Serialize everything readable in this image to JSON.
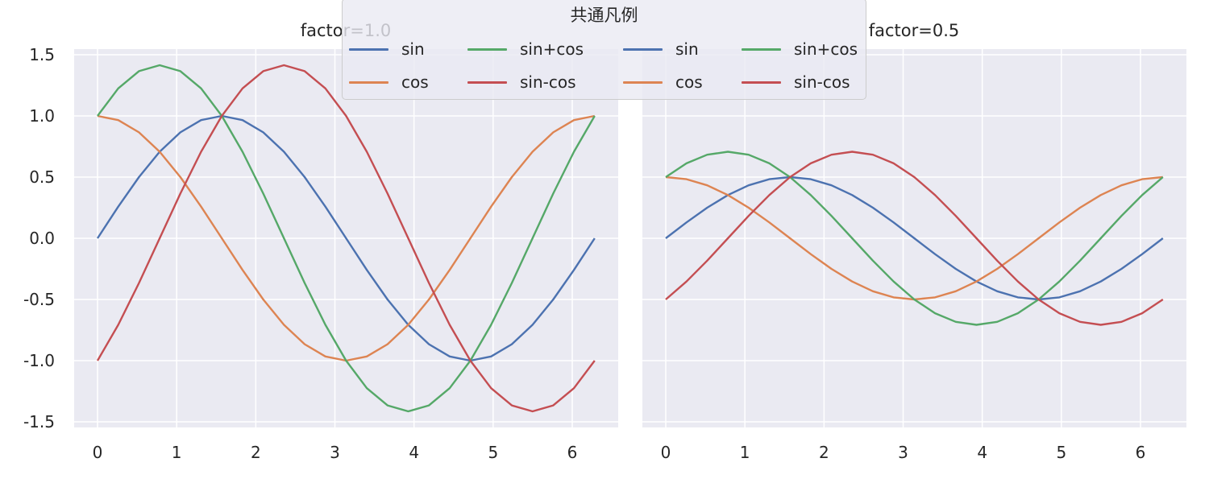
{
  "legend": {
    "title": "共通凡例",
    "entries": [
      {
        "label": "sin",
        "color": "#4c72b0"
      },
      {
        "label": "cos",
        "color": "#dd8452"
      },
      {
        "label": "sin+cos",
        "color": "#55a868"
      },
      {
        "label": "sin-cos",
        "color": "#c44e52"
      },
      {
        "label": "sin",
        "color": "#4c72b0"
      },
      {
        "label": "cos",
        "color": "#dd8452"
      },
      {
        "label": "sin+cos",
        "color": "#55a868"
      },
      {
        "label": "sin-cos",
        "color": "#c44e52"
      }
    ]
  },
  "style": {
    "axes_bg": "#eaeaf2",
    "grid_color": "#ffffff",
    "text_color": "#262626"
  },
  "chart_data": [
    {
      "type": "line",
      "title": "factor=1.0",
      "xlabel": "",
      "ylabel": "",
      "xlim": [
        -0.31,
        6.6
      ],
      "ylim": [
        -1.55,
        1.55
      ],
      "xticks": [
        "0",
        "1",
        "2",
        "3",
        "4",
        "5",
        "6"
      ],
      "yticks": [
        "-1.5",
        "-1.0",
        "-0.5",
        "0.0",
        "0.5",
        "1.0",
        "1.5"
      ],
      "grid": true,
      "x": [
        0,
        0.2618,
        0.5236,
        0.7854,
        1.0472,
        1.309,
        1.5708,
        1.8326,
        2.0944,
        2.3562,
        2.618,
        2.8798,
        3.1416,
        3.4034,
        3.6652,
        3.927,
        4.1888,
        4.4506,
        4.7124,
        4.9742,
        5.236,
        5.4978,
        5.7596,
        6.0214,
        6.2832
      ],
      "series": [
        {
          "name": "sin",
          "color": "#4c72b0",
          "values": [
            0,
            0.2588,
            0.5,
            0.7071,
            0.866,
            0.9659,
            1,
            0.9659,
            0.866,
            0.7071,
            0.5,
            0.2588,
            0,
            -0.2588,
            -0.5,
            -0.7071,
            -0.866,
            -0.9659,
            -1,
            -0.9659,
            -0.866,
            -0.7071,
            -0.5,
            -0.2588,
            0
          ]
        },
        {
          "name": "cos",
          "color": "#dd8452",
          "values": [
            1,
            0.9659,
            0.866,
            0.7071,
            0.5,
            0.2588,
            0,
            -0.2588,
            -0.5,
            -0.7071,
            -0.866,
            -0.9659,
            -1,
            -0.9659,
            -0.866,
            -0.7071,
            -0.5,
            -0.2588,
            0,
            0.2588,
            0.5,
            0.7071,
            0.866,
            0.9659,
            1
          ]
        },
        {
          "name": "sin+cos",
          "color": "#55a868",
          "values": [
            1,
            1.2247,
            1.366,
            1.4142,
            1.366,
            1.2247,
            1,
            0.7071,
            0.366,
            0,
            -0.366,
            -0.7071,
            -1,
            -1.2247,
            -1.366,
            -1.4142,
            -1.366,
            -1.2247,
            -1,
            -0.7071,
            -0.366,
            0,
            0.366,
            0.7071,
            1
          ]
        },
        {
          "name": "sin-cos",
          "color": "#c44e52",
          "values": [
            -1,
            -0.7071,
            -0.366,
            0,
            0.366,
            0.7071,
            1,
            1.2247,
            1.366,
            1.4142,
            1.366,
            1.2247,
            1,
            0.7071,
            0.366,
            0,
            -0.366,
            -0.7071,
            -1,
            -1.2247,
            -1.366,
            -1.4142,
            -1.366,
            -1.2247,
            -1
          ]
        }
      ]
    },
    {
      "type": "line",
      "title": "factor=0.5",
      "xlabel": "",
      "ylabel": "",
      "xlim": [
        -0.31,
        6.6
      ],
      "ylim": [
        -1.55,
        1.55
      ],
      "xticks": [
        "0",
        "1",
        "2",
        "3",
        "4",
        "5",
        "6"
      ],
      "yticks": [],
      "grid": true,
      "sharey": true,
      "x": [
        0,
        0.2618,
        0.5236,
        0.7854,
        1.0472,
        1.309,
        1.5708,
        1.8326,
        2.0944,
        2.3562,
        2.618,
        2.8798,
        3.1416,
        3.4034,
        3.6652,
        3.927,
        4.1888,
        4.4506,
        4.7124,
        4.9742,
        5.236,
        5.4978,
        5.7596,
        6.0214,
        6.2832
      ],
      "series": [
        {
          "name": "sin",
          "color": "#4c72b0",
          "values": [
            0,
            0.1294,
            0.25,
            0.3536,
            0.433,
            0.483,
            0.5,
            0.483,
            0.433,
            0.3536,
            0.25,
            0.1294,
            0,
            -0.1294,
            -0.25,
            -0.3536,
            -0.433,
            -0.483,
            -0.5,
            -0.483,
            -0.433,
            -0.3536,
            -0.25,
            -0.1294,
            0
          ]
        },
        {
          "name": "cos",
          "color": "#dd8452",
          "values": [
            0.5,
            0.483,
            0.433,
            0.3536,
            0.25,
            0.1294,
            0,
            -0.1294,
            -0.25,
            -0.3536,
            -0.433,
            -0.483,
            -0.5,
            -0.483,
            -0.433,
            -0.3536,
            -0.25,
            -0.1294,
            0,
            0.1294,
            0.25,
            0.3536,
            0.433,
            0.483,
            0.5
          ]
        },
        {
          "name": "sin+cos",
          "color": "#55a868",
          "values": [
            0.5,
            0.6124,
            0.683,
            0.7071,
            0.683,
            0.6124,
            0.5,
            0.3536,
            0.183,
            0,
            -0.183,
            -0.3536,
            -0.5,
            -0.6124,
            -0.683,
            -0.7071,
            -0.683,
            -0.6124,
            -0.5,
            -0.3536,
            -0.183,
            0,
            0.183,
            0.3536,
            0.5
          ]
        },
        {
          "name": "sin-cos",
          "color": "#c44e52",
          "values": [
            -0.5,
            -0.3536,
            -0.183,
            0,
            0.183,
            0.3536,
            0.5,
            0.6124,
            0.683,
            0.7071,
            0.683,
            0.6124,
            0.5,
            0.3536,
            0.183,
            0,
            -0.183,
            -0.3536,
            -0.5,
            -0.6124,
            -0.683,
            -0.7071,
            -0.683,
            -0.6124,
            -0.5
          ]
        }
      ]
    }
  ]
}
